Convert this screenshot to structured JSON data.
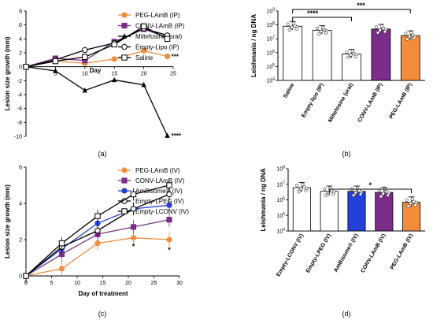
{
  "panels": [
    {
      "id": "a",
      "caption": "(a)",
      "chart_data": {
        "type": "line",
        "ylabel": "Lesion size growth (mm)",
        "xlabel": "Day",
        "xlim": [
          0,
          25
        ],
        "ylim": [
          -10,
          8
        ],
        "xticks": [
          5,
          10,
          15,
          20,
          25
        ],
        "yticks": [
          -10,
          -8,
          -6,
          -4,
          -2,
          0,
          2,
          4,
          6,
          8
        ],
        "series": [
          {
            "name": "PEG-LAmB (IP)",
            "color": "#f28c3b",
            "marker": "circle-filled",
            "x": [
              0,
              5,
              10,
              15,
              20,
              24
            ],
            "y": [
              0,
              0.8,
              0.5,
              1.1,
              2.3,
              1.5
            ]
          },
          {
            "name": "CONV-LAmB (IP)",
            "color": "#7b2d8b",
            "marker": "square-filled",
            "x": [
              0,
              5,
              10,
              15,
              20,
              24
            ],
            "y": [
              0,
              1.2,
              0.9,
              3.6,
              5.4,
              4.2
            ]
          },
          {
            "name": "Miltefosine (oral)",
            "color": "#000000",
            "marker": "triangle-filled",
            "x": [
              0,
              5,
              10,
              15,
              20,
              24
            ],
            "y": [
              0,
              -0.6,
              -3.4,
              -1.9,
              -2.6,
              -9.9
            ]
          },
          {
            "name": "Empty-Lipo (IP)",
            "color": "#000000",
            "marker": "circle-open",
            "x": [
              0,
              5,
              10,
              15,
              20,
              24
            ],
            "y": [
              0,
              1.0,
              2.4,
              3.4,
              5.5,
              4.5
            ]
          },
          {
            "name": "Saline",
            "color": "#000000",
            "marker": "square-open",
            "x": [
              0,
              5,
              10,
              15,
              20,
              24
            ],
            "y": [
              0,
              0.8,
              1.4,
              3.2,
              5.8,
              4.0
            ]
          }
        ],
        "annotations": [
          {
            "text": "***",
            "near_series": "PEG-LAmB (IP)"
          },
          {
            "text": "****",
            "near_series": "Miltefosine (oral)"
          }
        ]
      }
    },
    {
      "id": "b",
      "caption": "(b)",
      "chart_data": {
        "type": "bar",
        "ylabel": "Leishmania / ng DNA",
        "yscale": "log",
        "ylim": [
          10000,
          1000000000
        ],
        "ytick_labels": [
          "10^4",
          "10^5",
          "10^6",
          "10^7",
          "10^8",
          "10^9"
        ],
        "categories": [
          "Saline",
          "Empty lipo (IP)",
          "Miltefosine (oral)",
          "CONV-LAmB (IP)",
          "PEG-LAmB (IP)"
        ],
        "values": [
          80000000,
          40000000,
          800000,
          50000000,
          17000000
        ],
        "colors": [
          "#ffffff",
          "#ffffff",
          "#ffffff",
          "#7b2d8b",
          "#f28c3b"
        ],
        "significance": [
          {
            "from": 0,
            "to": 2,
            "label": "****"
          },
          {
            "from": 0,
            "to": 4,
            "label": "***"
          }
        ]
      }
    },
    {
      "id": "c",
      "caption": "(c)",
      "chart_data": {
        "type": "line",
        "ylabel": "Lesion size growth (mm)",
        "xlabel": "Day of treatment",
        "xlim": [
          0,
          30
        ],
        "ylim": [
          0,
          6
        ],
        "xticks": [
          0,
          5,
          10,
          15,
          20,
          25,
          30
        ],
        "yticks": [
          0,
          2,
          4,
          6
        ],
        "series": [
          {
            "name": "PEG-LAmB (IV)",
            "color": "#f28c3b",
            "marker": "circle-filled",
            "x": [
              0,
              7,
              14,
              21,
              28
            ],
            "y": [
              0,
              0.4,
              1.8,
              2.1,
              2.0
            ]
          },
          {
            "name": "CONV-LAmB (IV)",
            "color": "#7b2d8b",
            "marker": "square-filled",
            "x": [
              0,
              7,
              14,
              21,
              28
            ],
            "y": [
              0,
              1.2,
              2.3,
              2.7,
              3.1
            ]
          },
          {
            "name": "AmBisome® (IV)",
            "color": "#2340d8",
            "marker": "circle-filled",
            "x": [
              0,
              7,
              14,
              21,
              28
            ],
            "y": [
              0,
              1.5,
              2.9,
              3.7,
              3.9
            ]
          },
          {
            "name": "Empty-LPEG (IV)",
            "color": "#000000",
            "marker": "circle-open",
            "x": [
              0,
              7,
              14,
              21,
              28
            ],
            "y": [
              0,
              1.6,
              2.5,
              3.7,
              4.5
            ]
          },
          {
            "name": "Empty-LCONV (IV)",
            "color": "#000000",
            "marker": "square-open",
            "x": [
              0,
              7,
              14,
              21,
              28
            ],
            "y": [
              0,
              1.8,
              3.3,
              4.5,
              5.0
            ]
          }
        ],
        "annotations": [
          {
            "text": "*",
            "x": 21,
            "y": 1.5
          },
          {
            "text": "*",
            "x": 28,
            "y": 1.3
          }
        ]
      }
    },
    {
      "id": "d",
      "caption": "(d)",
      "chart_data": {
        "type": "bar",
        "ylabel": "Leishmania / ng DNA",
        "yscale": "log",
        "ylim": [
          10000,
          100000000
        ],
        "ytick_labels": [
          "10^4",
          "10^5",
          "10^6",
          "10^7",
          "10^8"
        ],
        "categories": [
          "Empty-LCONV (IV)",
          "Empty-LPEG (IV)",
          "AmBisome® (IV)",
          "CONV-LAmB (IV)",
          "PEG-LAmB (IV)"
        ],
        "values": [
          6000000,
          3500000,
          3500000,
          3000000,
          700000
        ],
        "colors": [
          "#ffffff",
          "#ffffff",
          "#2340d8",
          "#7b2d8b",
          "#f28c3b"
        ],
        "significance": [
          {
            "from": 1,
            "to": 4,
            "label": "*"
          }
        ]
      }
    }
  ]
}
